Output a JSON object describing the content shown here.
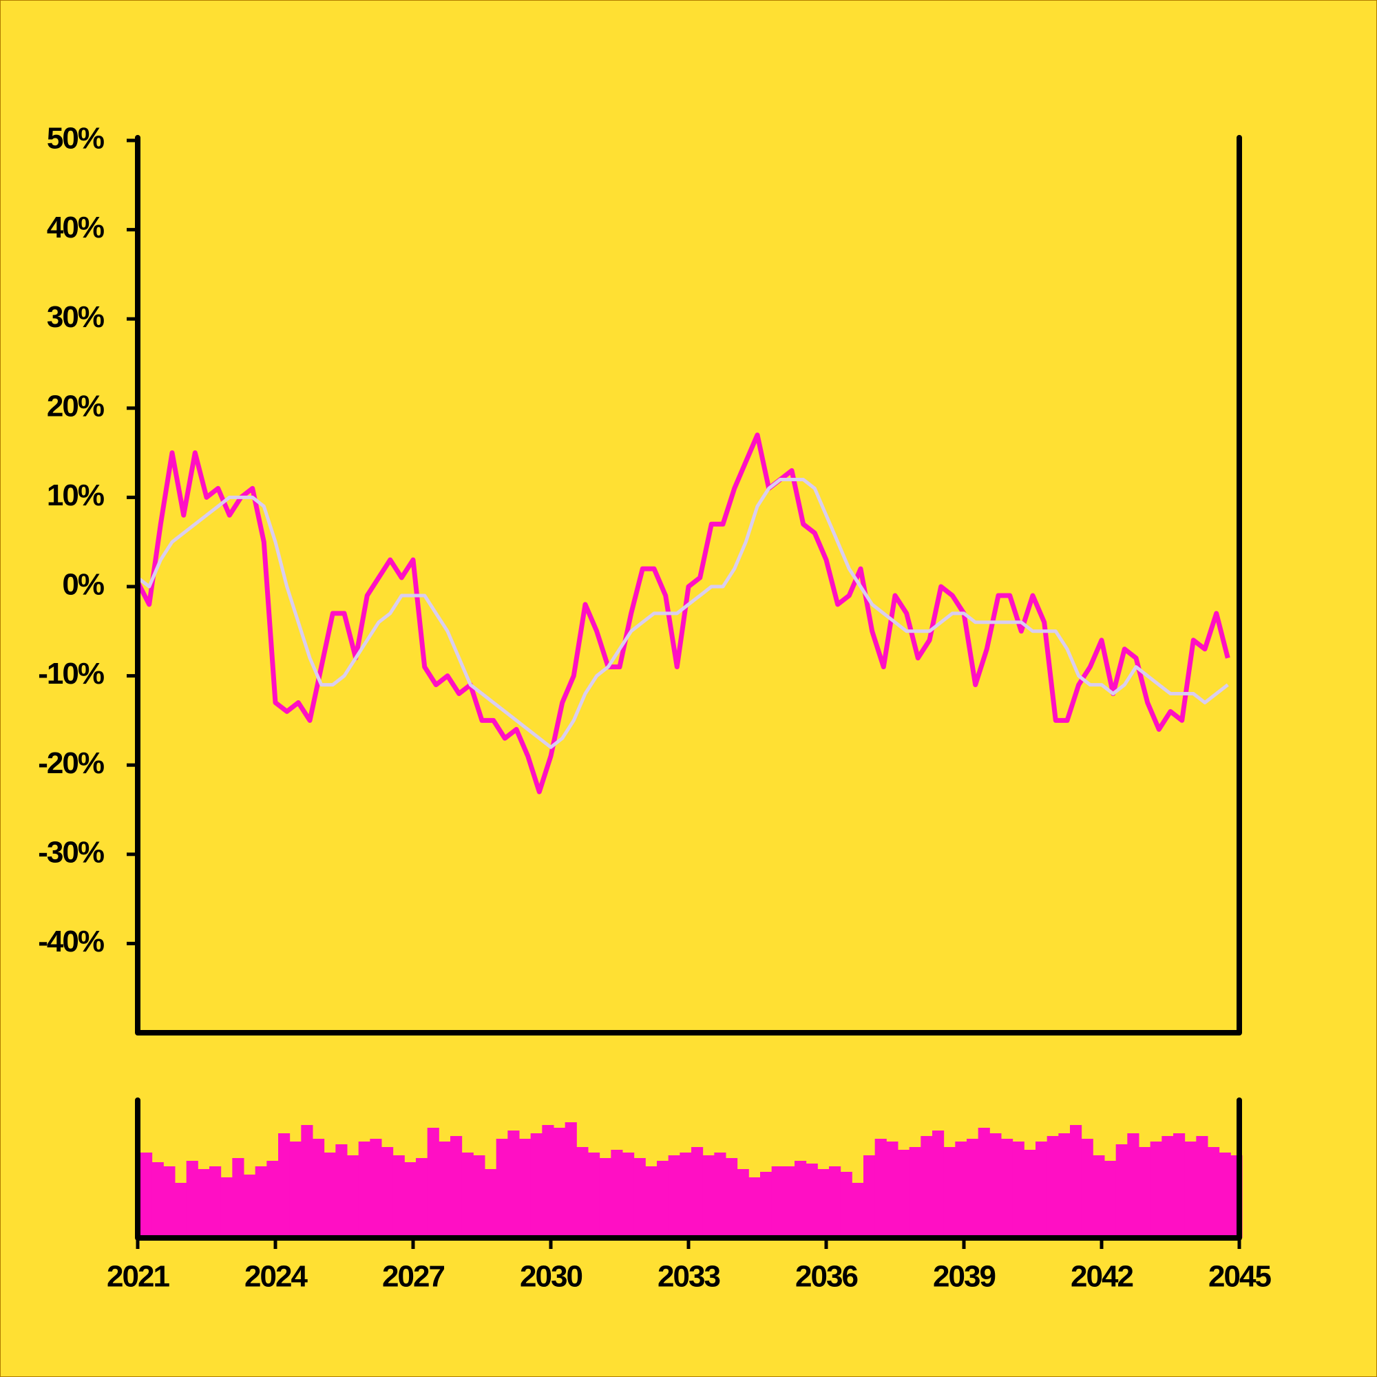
{
  "chart_data": [
    {
      "type": "line",
      "x": [
        2021,
        2021.25,
        2021.5,
        2021.75,
        2022,
        2022.25,
        2022.5,
        2022.75,
        2023,
        2023.25,
        2023.5,
        2023.75,
        2024,
        2024.25,
        2024.5,
        2024.75,
        2025,
        2025.25,
        2025.5,
        2025.75,
        2026,
        2026.25,
        2026.5,
        2026.75,
        2027,
        2027.25,
        2027.5,
        2027.75,
        2028,
        2028.25,
        2028.5,
        2028.75,
        2029,
        2029.25,
        2029.5,
        2029.75,
        2030,
        2030.25,
        2030.5,
        2030.75,
        2031,
        2031.25,
        2031.5,
        2031.75,
        2032,
        2032.25,
        2032.5,
        2032.75,
        2033,
        2033.25,
        2033.5,
        2033.75,
        2034,
        2034.25,
        2034.5,
        2034.75,
        2035,
        2035.25,
        2035.5,
        2035.75,
        2036,
        2036.25,
        2036.5,
        2036.75,
        2037,
        2037.25,
        2037.5,
        2037.75,
        2038,
        2038.25,
        2038.5,
        2038.75,
        2039,
        2039.25,
        2039.5,
        2039.75,
        2040,
        2040.25,
        2040.5,
        2040.75,
        2041,
        2041.25,
        2041.5,
        2041.75,
        2042,
        2042.25,
        2042.5,
        2042.75,
        2043,
        2043.25,
        2043.5,
        2043.75,
        2044,
        2044.25,
        2044.5,
        2044.75
      ],
      "series": [
        {
          "color": "#ff0fc4",
          "values": [
            0.5,
            -2,
            7,
            15,
            8,
            15,
            10,
            11,
            8,
            10,
            11,
            5,
            -13,
            -14,
            -13,
            -15,
            -9,
            -3,
            -3,
            -8,
            -1,
            1,
            3,
            1,
            3,
            -9,
            -11,
            -10,
            -12,
            -11,
            -15,
            -15,
            -17,
            -16,
            -19,
            -23,
            -19,
            -13,
            -10,
            -2,
            -5,
            -9,
            -9,
            -3,
            2,
            2,
            -1,
            -9,
            0,
            1,
            7,
            7,
            11,
            14,
            17,
            11,
            12,
            13,
            7,
            6,
            3,
            -2,
            -1,
            2,
            -5,
            -9,
            -1,
            -3,
            -8,
            -6,
            0,
            -1,
            -3,
            -11,
            -7,
            -1,
            -1,
            -5,
            -1,
            -4,
            -15,
            -15,
            -11,
            -9,
            -6,
            -12,
            -7,
            -8,
            -13,
            -16,
            -14,
            -15,
            -6,
            -7,
            -3,
            -8
          ]
        },
        {
          "color": "#d9cdf0",
          "values": [
            1,
            0,
            3,
            5,
            6,
            7,
            8,
            9,
            10,
            10,
            10,
            9,
            5,
            0,
            -4,
            -8,
            -11,
            -11,
            -10,
            -8,
            -6,
            -4,
            -3,
            -1,
            -1,
            -1,
            -3,
            -5,
            -8,
            -11,
            -12,
            -13,
            -14,
            -15,
            -16,
            -17,
            -18,
            -17,
            -15,
            -12,
            -10,
            -9,
            -7,
            -5,
            -4,
            -3,
            -3,
            -3,
            -2,
            -1,
            0,
            0,
            2,
            5,
            9,
            11,
            12,
            12,
            12,
            11,
            8,
            5,
            2,
            0,
            -2,
            -3,
            -4,
            -5,
            -5,
            -5,
            -4,
            -3,
            -3,
            -4,
            -4,
            -4,
            -4,
            -4,
            -5,
            -5,
            -5,
            -7,
            -10,
            -11,
            -11,
            -12,
            -11,
            -9,
            -10,
            -11,
            -12,
            -12,
            -12,
            -13,
            -12,
            -11
          ]
        }
      ],
      "xlim": [
        2021,
        2045
      ],
      "ylim": [
        -50,
        50
      ],
      "yticks": [
        {
          "value": 50,
          "label": "50%"
        },
        {
          "value": 40,
          "label": "40%"
        },
        {
          "value": 30,
          "label": "30%"
        },
        {
          "value": 20,
          "label": "20%"
        },
        {
          "value": 10,
          "label": "10%"
        },
        {
          "value": 0,
          "label": "0%"
        },
        {
          "value": -10,
          "label": "-10%"
        },
        {
          "value": -20,
          "label": "-20%"
        },
        {
          "value": -30,
          "label": "-30%"
        },
        {
          "value": -40,
          "label": "-40%"
        }
      ]
    },
    {
      "type": "bar",
      "x": [
        2021,
        2021.25,
        2021.5,
        2021.75,
        2022,
        2022.25,
        2022.5,
        2022.75,
        2023,
        2023.25,
        2023.5,
        2023.75,
        2024,
        2024.25,
        2024.5,
        2024.75,
        2025,
        2025.25,
        2025.5,
        2025.75,
        2026,
        2026.25,
        2026.5,
        2026.75,
        2027,
        2027.25,
        2027.5,
        2027.75,
        2028,
        2028.25,
        2028.5,
        2028.75,
        2029,
        2029.25,
        2029.5,
        2029.75,
        2030,
        2030.25,
        2030.5,
        2030.75,
        2031,
        2031.25,
        2031.5,
        2031.75,
        2032,
        2032.25,
        2032.5,
        2032.75,
        2033,
        2033.25,
        2033.5,
        2033.75,
        2034,
        2034.25,
        2034.5,
        2034.75,
        2035,
        2035.25,
        2035.5,
        2035.75,
        2036,
        2036.25,
        2036.5,
        2036.75,
        2037,
        2037.25,
        2037.5,
        2037.75,
        2038,
        2038.25,
        2038.5,
        2038.75,
        2039,
        2039.25,
        2039.5,
        2039.75,
        2040,
        2040.25,
        2040.5,
        2040.75,
        2041,
        2041.25,
        2041.5,
        2041.75,
        2042,
        2042.25,
        2042.5,
        2042.75,
        2043,
        2043.25,
        2043.5,
        2043.75,
        2044,
        2044.25,
        2044.5,
        2044.75
      ],
      "values": [
        62,
        55,
        52,
        40,
        56,
        50,
        52,
        44,
        58,
        46,
        52,
        56,
        76,
        70,
        82,
        72,
        62,
        68,
        60,
        70,
        72,
        66,
        60,
        55,
        58,
        80,
        70,
        74,
        62,
        60,
        50,
        72,
        78,
        72,
        76,
        82,
        80,
        84,
        66,
        62,
        58,
        64,
        62,
        58,
        52,
        56,
        60,
        62,
        66,
        60,
        62,
        58,
        50,
        44,
        48,
        52,
        52,
        56,
        54,
        50,
        52,
        48,
        40,
        60,
        72,
        70,
        64,
        66,
        74,
        78,
        66,
        70,
        72,
        80,
        76,
        72,
        70,
        64,
        70,
        74,
        76,
        82,
        72,
        60,
        56,
        68,
        76,
        66,
        70,
        74,
        76,
        70,
        74,
        66,
        62,
        60
      ],
      "color": "#ff0fc4",
      "xlim": [
        2021,
        2045
      ],
      "ylim": [
        0,
        100
      ],
      "xticks": [
        2021,
        2024,
        2027,
        2030,
        2033,
        2036,
        2039,
        2042,
        2045
      ]
    }
  ]
}
